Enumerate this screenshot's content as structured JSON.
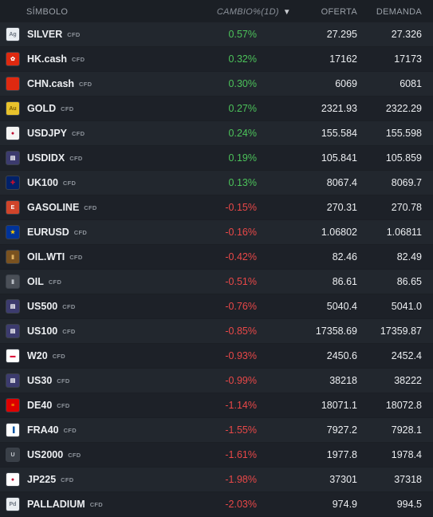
{
  "header": {
    "symbol": "SÍMBOLO",
    "change": "CAMBIO%(1D)",
    "sort_arrow": "▼",
    "bid": "OFERTA",
    "ask": "DEMANDA"
  },
  "rows": [
    {
      "symbol": "SILVER",
      "type": "CFD",
      "change": "0.57%",
      "dir": "pos",
      "bid": "27.295",
      "ask": "27.326",
      "icon": {
        "name": "silver-icon",
        "text": "Ag",
        "bg": "#e9edf1",
        "fg": "#6b7480"
      }
    },
    {
      "symbol": "HK.cash",
      "type": "CFD",
      "change": "0.32%",
      "dir": "pos",
      "bid": "17162",
      "ask": "17173",
      "icon": {
        "name": "hong-kong-flag-icon",
        "text": "✿",
        "bg": "#de2910",
        "fg": "#ffffff"
      }
    },
    {
      "symbol": "CHN.cash",
      "type": "CFD",
      "change": "0.30%",
      "dir": "pos",
      "bid": "6069",
      "ask": "6081",
      "icon": {
        "name": "china-flag-icon",
        "text": "",
        "bg": "#de2910",
        "fg": "#ffde00"
      }
    },
    {
      "symbol": "GOLD",
      "type": "CFD",
      "change": "0.27%",
      "dir": "pos",
      "bid": "2321.93",
      "ask": "2322.29",
      "icon": {
        "name": "gold-icon",
        "text": "Au",
        "bg": "#e8c22c",
        "fg": "#7a5a00"
      }
    },
    {
      "symbol": "USDJPY",
      "type": "CFD",
      "change": "0.24%",
      "dir": "pos",
      "bid": "155.584",
      "ask": "155.598",
      "icon": {
        "name": "usd-jpy-flags-icon",
        "text": "●",
        "bg": "#f4f4f4",
        "fg": "#bc002d"
      }
    },
    {
      "symbol": "USDIDX",
      "type": "CFD",
      "change": "0.19%",
      "dir": "pos",
      "bid": "105.841",
      "ask": "105.859",
      "icon": {
        "name": "us-flag-icon",
        "text": "▤",
        "bg": "#3c3b6e",
        "fg": "#ffffff"
      }
    },
    {
      "symbol": "UK100",
      "type": "CFD",
      "change": "0.13%",
      "dir": "pos",
      "bid": "8067.4",
      "ask": "8069.7",
      "icon": {
        "name": "uk-flag-icon",
        "text": "✚",
        "bg": "#012169",
        "fg": "#c8102e"
      }
    },
    {
      "symbol": "GASOLINE",
      "type": "CFD",
      "change": "-0.15%",
      "dir": "neg",
      "bid": "270.31",
      "ask": "270.78",
      "icon": {
        "name": "gasoline-icon",
        "text": "E",
        "bg": "#d0442a",
        "fg": "#ffffff"
      }
    },
    {
      "symbol": "EURUSD",
      "type": "CFD",
      "change": "-0.16%",
      "dir": "neg",
      "bid": "1.06802",
      "ask": "1.06811",
      "icon": {
        "name": "eur-usd-flags-icon",
        "text": "★",
        "bg": "#003399",
        "fg": "#ffcc00"
      }
    },
    {
      "symbol": "OIL.WTI",
      "type": "CFD",
      "change": "-0.42%",
      "dir": "neg",
      "bid": "82.46",
      "ask": "82.49",
      "icon": {
        "name": "oil-barrel-icon",
        "text": "▮",
        "bg": "#7a5220",
        "fg": "#e0b060"
      }
    },
    {
      "symbol": "OIL",
      "type": "CFD",
      "change": "-0.51%",
      "dir": "neg",
      "bid": "86.61",
      "ask": "86.65",
      "icon": {
        "name": "oil-icon",
        "text": "▮",
        "bg": "#4a4f57",
        "fg": "#b9bec5"
      }
    },
    {
      "symbol": "US500",
      "type": "CFD",
      "change": "-0.76%",
      "dir": "neg",
      "bid": "5040.4",
      "ask": "5041.0",
      "icon": {
        "name": "us-flag-icon",
        "text": "▤",
        "bg": "#3c3b6e",
        "fg": "#ffffff"
      }
    },
    {
      "symbol": "US100",
      "type": "CFD",
      "change": "-0.85%",
      "dir": "neg",
      "bid": "17358.69",
      "ask": "17359.87",
      "icon": {
        "name": "us-flag-icon",
        "text": "▤",
        "bg": "#3c3b6e",
        "fg": "#ffffff"
      }
    },
    {
      "symbol": "W20",
      "type": "CFD",
      "change": "-0.93%",
      "dir": "neg",
      "bid": "2450.6",
      "ask": "2452.4",
      "icon": {
        "name": "poland-flag-icon",
        "text": "▬",
        "bg": "#ffffff",
        "fg": "#dc143c"
      }
    },
    {
      "symbol": "US30",
      "type": "CFD",
      "change": "-0.99%",
      "dir": "neg",
      "bid": "38218",
      "ask": "38222",
      "icon": {
        "name": "us-flag-icon",
        "text": "▤",
        "bg": "#3c3b6e",
        "fg": "#ffffff"
      }
    },
    {
      "symbol": "DE40",
      "type": "CFD",
      "change": "-1.14%",
      "dir": "neg",
      "bid": "18071.1",
      "ask": "18072.8",
      "icon": {
        "name": "germany-flag-icon",
        "text": "≡",
        "bg": "#dd0000",
        "fg": "#ffce00"
      }
    },
    {
      "symbol": "FRA40",
      "type": "CFD",
      "change": "-1.55%",
      "dir": "neg",
      "bid": "7927.2",
      "ask": "7928.1",
      "icon": {
        "name": "france-flag-icon",
        "text": "▐",
        "bg": "#ffffff",
        "fg": "#0055a4"
      }
    },
    {
      "symbol": "US2000",
      "type": "CFD",
      "change": "-1.61%",
      "dir": "neg",
      "bid": "1977.8",
      "ask": "1978.4",
      "icon": {
        "name": "us2000-icon",
        "text": "U",
        "bg": "#3a4048",
        "fg": "#c4c9cf"
      }
    },
    {
      "symbol": "JP225",
      "type": "CFD",
      "change": "-1.98%",
      "dir": "neg",
      "bid": "37301",
      "ask": "37318",
      "icon": {
        "name": "japan-flag-icon",
        "text": "●",
        "bg": "#ffffff",
        "fg": "#bc002d"
      }
    },
    {
      "symbol": "PALLADIUM",
      "type": "CFD",
      "change": "-2.03%",
      "dir": "neg",
      "bid": "974.9",
      "ask": "994.5",
      "icon": {
        "name": "palladium-icon",
        "text": "Pd",
        "bg": "#e9edf1",
        "fg": "#6b7480"
      }
    }
  ]
}
